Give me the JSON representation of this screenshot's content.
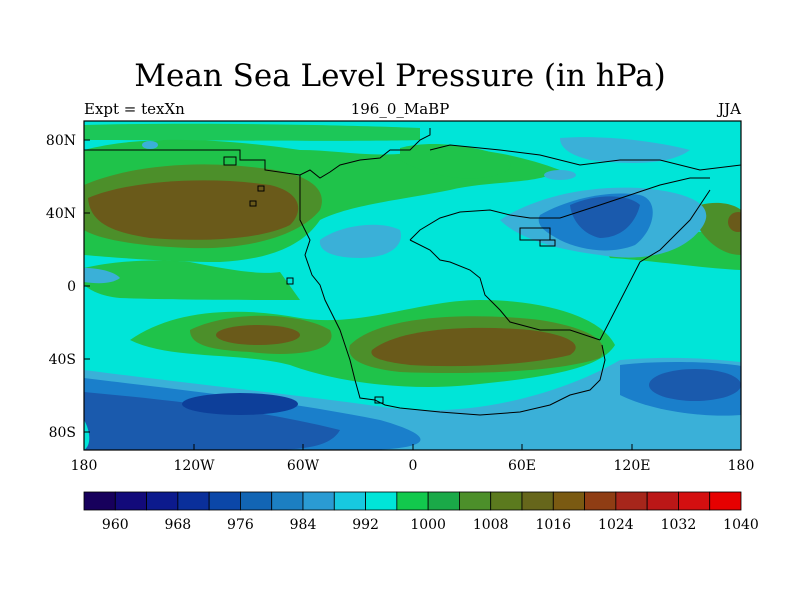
{
  "title": "Mean Sea Level Pressure (in hPa)",
  "subtitle_left": "Expt = texXn",
  "subtitle_center": "196_0_MaBP",
  "subtitle_right": "JJA",
  "colors": {
    "deep_low": "#1a5aad",
    "low": "#2f8fd2",
    "mid_low": "#3ab0d8",
    "neutral": "#00e5d8",
    "green": "#1fc34a",
    "olive": "#4c8f2a",
    "brown": "#6a5a1a"
  },
  "chart_data": {
    "type": "heatmap",
    "title": "Mean Sea Level Pressure (in hPa)",
    "xlabel": "",
    "ylabel": "",
    "x_ticks": [
      "180",
      "120W",
      "60W",
      "0",
      "60E",
      "120E",
      "180"
    ],
    "y_ticks": [
      "80N",
      "40N",
      "0",
      "40S",
      "80S"
    ],
    "x_range": [
      -180,
      180
    ],
    "y_range": [
      -90,
      90
    ],
    "colorbar": {
      "labels": [
        "960",
        "968",
        "976",
        "984",
        "992",
        "1000",
        "1008",
        "1016",
        "1024",
        "1032",
        "1040"
      ],
      "colors": [
        "#17005c",
        "#120a7a",
        "#0c1a8d",
        "#0a2f9a",
        "#0b47a8",
        "#1265b4",
        "#1c7fc2",
        "#2a9bd3",
        "#17c9e0",
        "#00e5d8",
        "#12c94d",
        "#1aa948",
        "#4c8f2a",
        "#5b7a1e",
        "#66661b",
        "#7a5a12",
        "#8f3d14",
        "#a6261b",
        "#bb1717",
        "#d40f10",
        "#e60000"
      ]
    }
  }
}
